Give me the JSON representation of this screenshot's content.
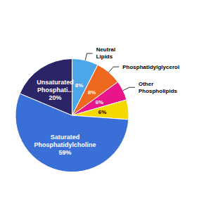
{
  "chart_data": {
    "type": "pie",
    "categories": [
      "Neutral\nLipids",
      "Phosphatidylglycerol",
      "Other\nPhospholipids",
      null,
      "Saturated\nPhosphatidylcholine",
      "Unsaturated\nPhosphati..."
    ],
    "values": [
      8,
      8,
      6,
      6,
      59,
      20
    ],
    "value_labels": [
      "8%",
      "8%",
      "6%",
      "6%",
      "59%",
      "20%"
    ],
    "colors": [
      "#4da6e8",
      "#ee6820",
      "#e8148a",
      "#f5d800",
      "#3a6fd8",
      "#2b2568"
    ],
    "data_labels": true
  }
}
